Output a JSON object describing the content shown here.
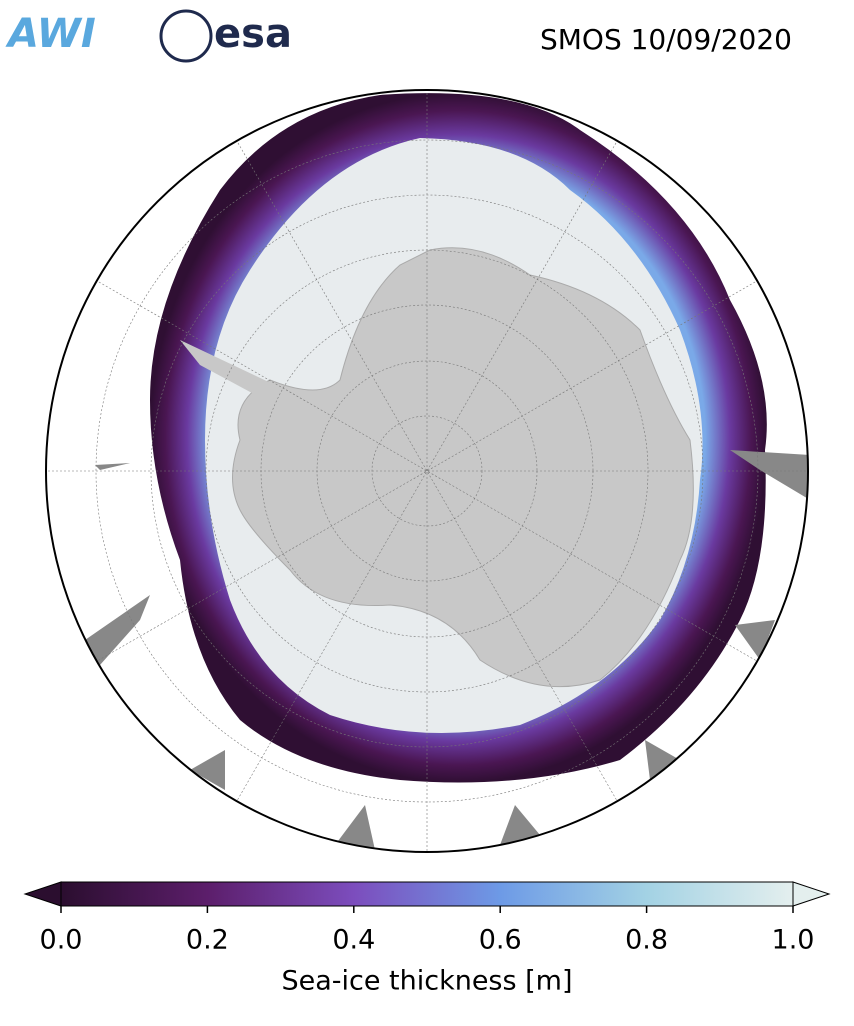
{
  "header": {
    "logos": [
      "AWI",
      "esa"
    ],
    "title": "SMOS 10/09/2020"
  },
  "colorbar": {
    "label": "Sea-ice thickness [m]",
    "lim": [
      0,
      1
    ],
    "ticks": [
      {
        "value": 0,
        "label": "0.0"
      },
      {
        "value": 0.2,
        "label": "0.2"
      },
      {
        "value": 0.4,
        "label": "0.4"
      },
      {
        "value": 0.6,
        "label": "0.6"
      },
      {
        "value": 0.8,
        "label": "0.8"
      },
      {
        "value": 1,
        "label": "1.0"
      }
    ]
  }
}
